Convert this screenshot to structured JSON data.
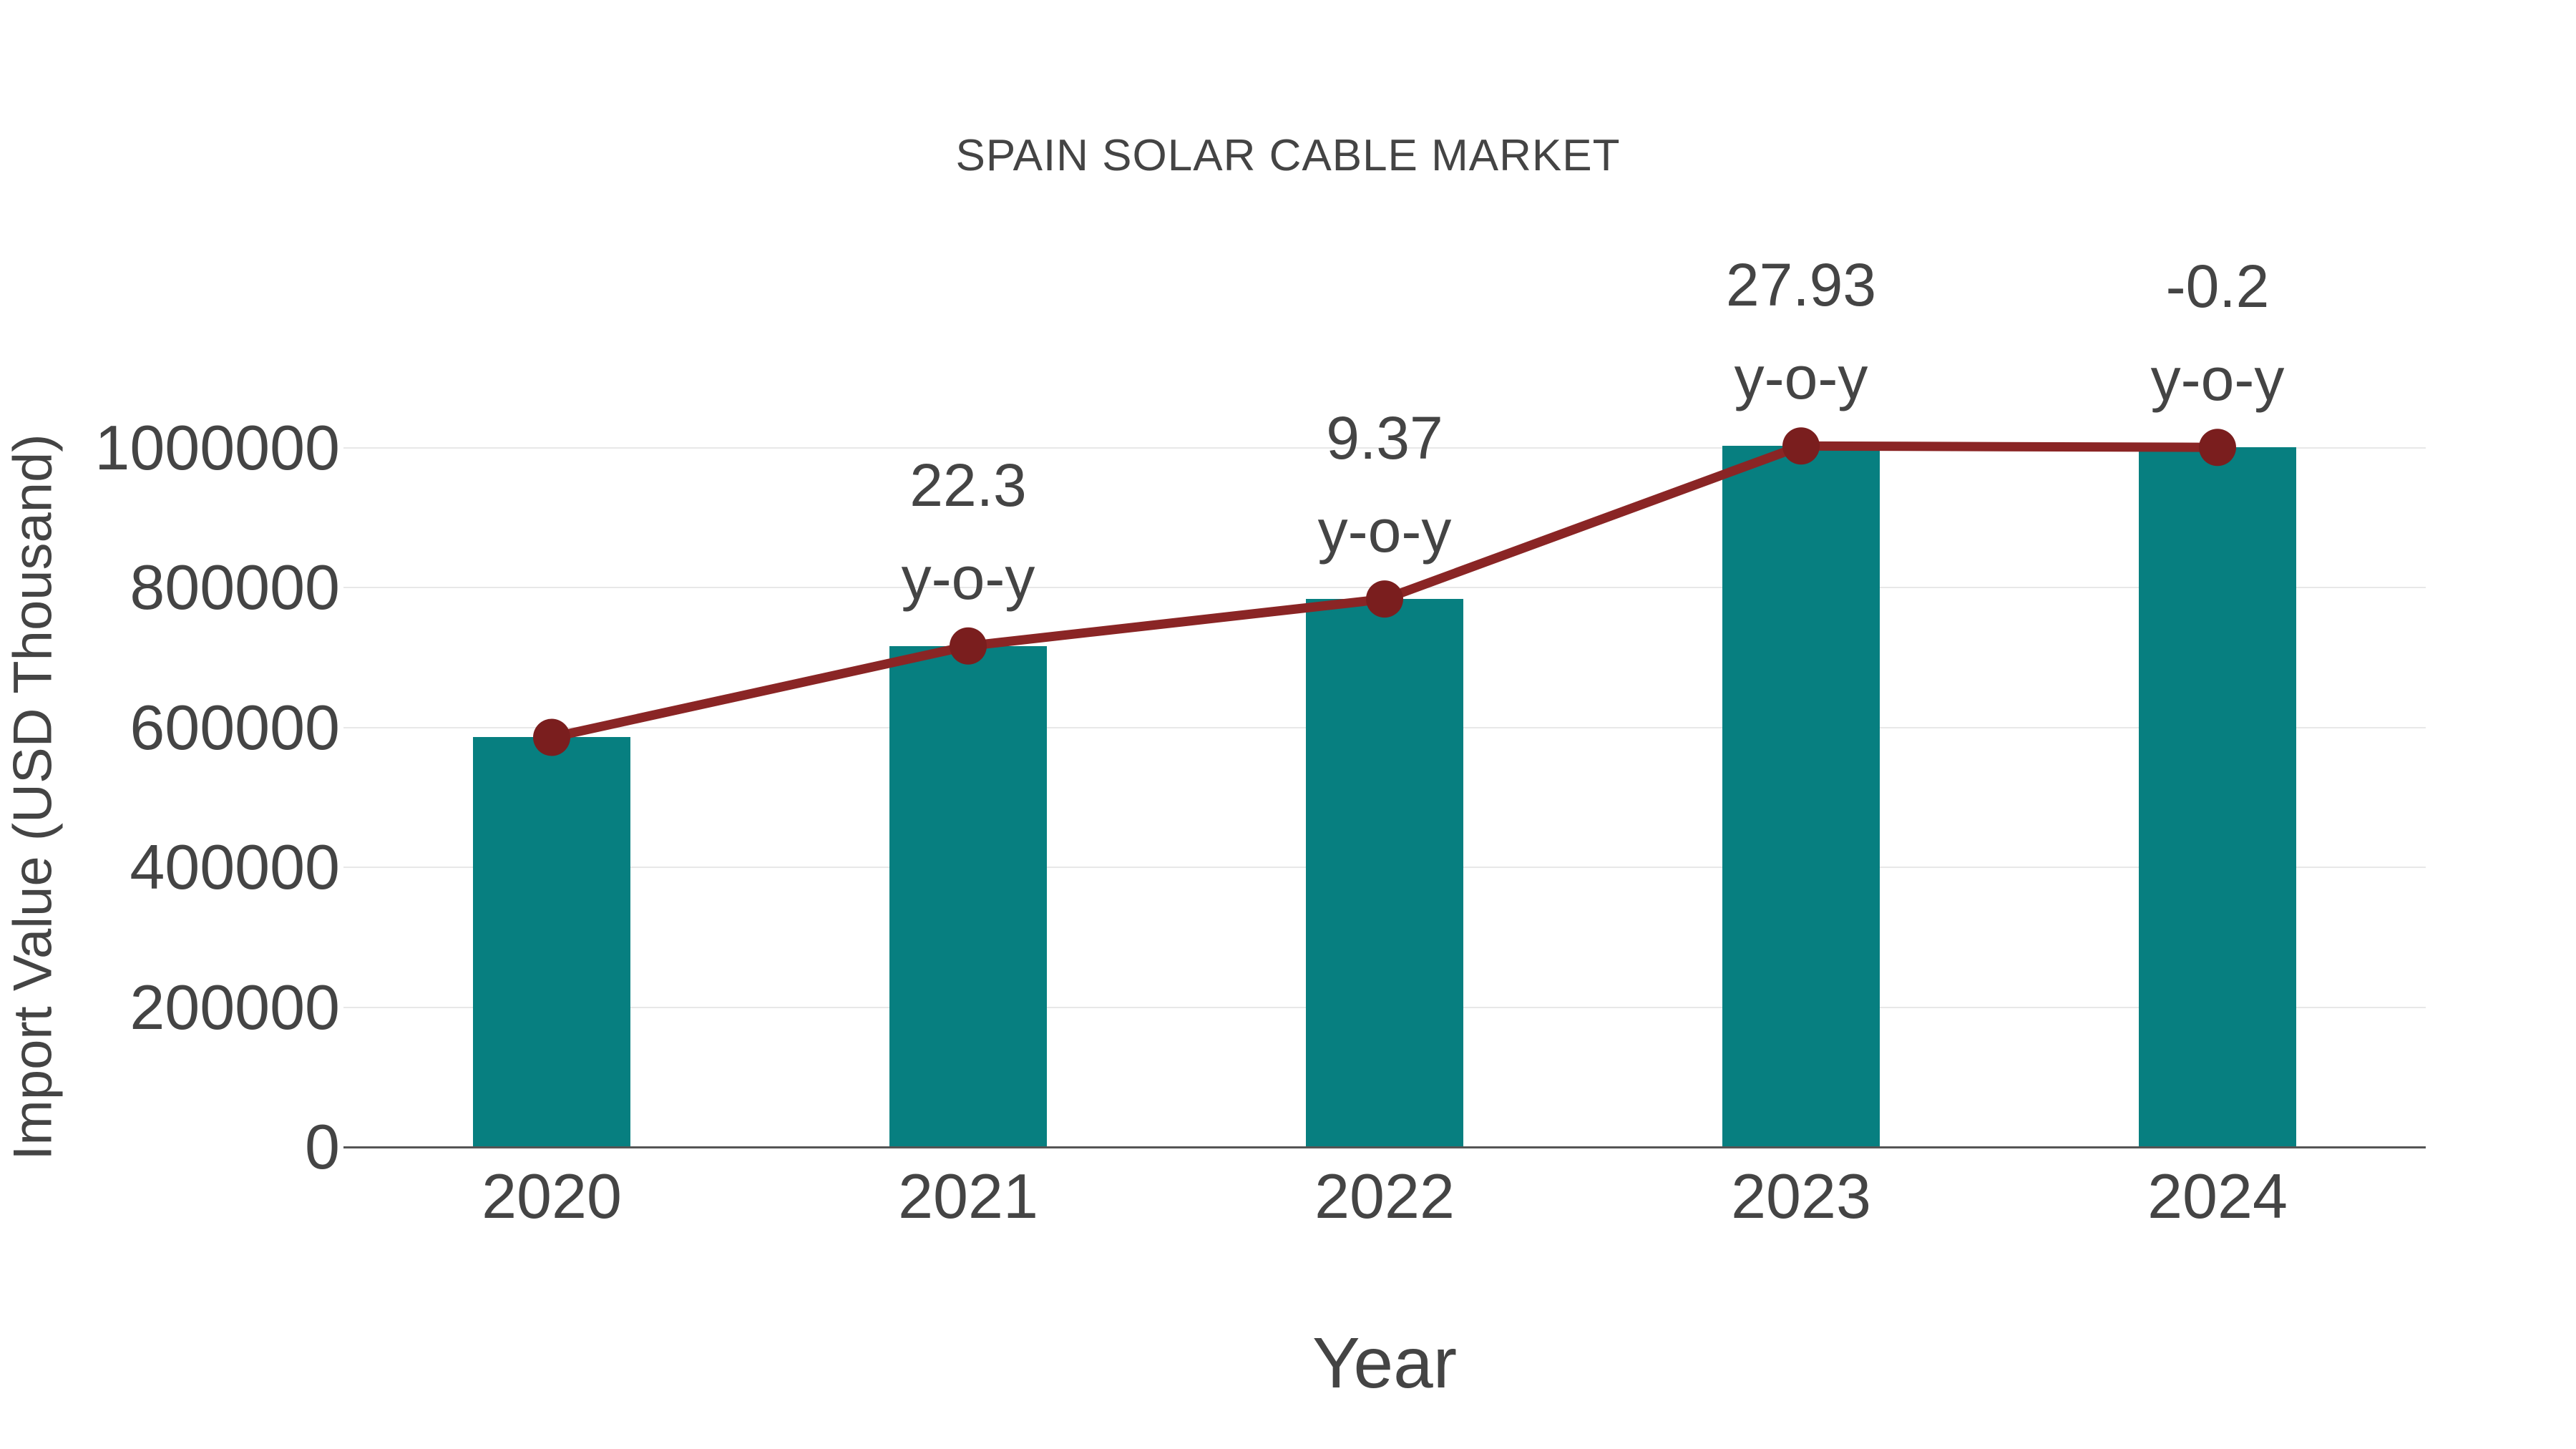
{
  "chart_data": {
    "type": "bar",
    "title": "SPAIN SOLAR CABLE MARKET",
    "xlabel": "Year",
    "ylabel": "Import Value (USD Thousand)",
    "categories": [
      "2020",
      "2021",
      "2022",
      "2023",
      "2024"
    ],
    "series": [
      {
        "name": "import-value-bars",
        "type": "bar",
        "values": [
          586000,
          716700,
          783900,
          1002800,
          1000800
        ],
        "color": "#077F80"
      },
      {
        "name": "import-value-trend-line",
        "type": "line",
        "values": [
          586000,
          716700,
          783900,
          1002800,
          1000800
        ],
        "color": "#8A2525",
        "marker_color": "#7A1E1E"
      }
    ],
    "annotations": [
      {
        "category": "2021",
        "line1": "22.3",
        "line2": "y-o-y"
      },
      {
        "category": "2022",
        "line1": "9.37",
        "line2": "y-o-y"
      },
      {
        "category": "2023",
        "line1": "27.93",
        "line2": "y-o-y"
      },
      {
        "category": "2024",
        "line1": "-0.2",
        "line2": "y-o-y"
      }
    ],
    "ylim": [
      0,
      1000000
    ],
    "ytick_step": 200000,
    "yticks": [
      "0",
      "200000",
      "400000",
      "600000",
      "800000",
      "1000000"
    ],
    "grid": true,
    "legend": false,
    "colors": {
      "text": "#444444",
      "grid": "#e8e8e8",
      "axis": "#555555",
      "background": "#ffffff"
    }
  }
}
